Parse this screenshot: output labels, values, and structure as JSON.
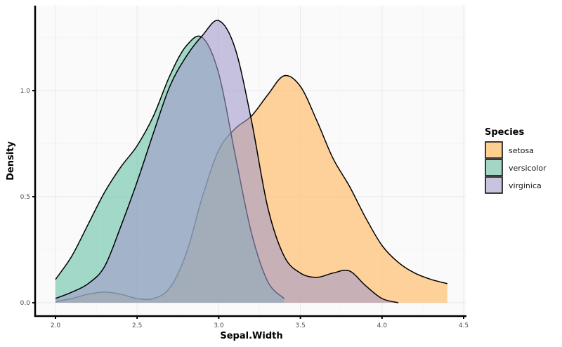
{
  "chart_data": {
    "type": "area",
    "subtype": "density",
    "title": "",
    "xlabel": "Sepal.Width",
    "ylabel": "Density",
    "xlim": [
      1.88,
      4.52
    ],
    "ylim": [
      -0.065,
      1.4
    ],
    "x_ticks": [
      2.0,
      2.5,
      3.0,
      3.5,
      4.0,
      4.5
    ],
    "x_tick_labels": [
      "2.0",
      "2.5",
      "3.0",
      "3.5",
      "4.0",
      "4.5"
    ],
    "y_ticks": [
      0.0,
      0.5,
      1.0
    ],
    "y_tick_labels": [
      "0.0",
      "0.5",
      "1.0"
    ],
    "grid": true,
    "legend_position": "right",
    "legend_title": "Species",
    "series": [
      {
        "name": "setosa",
        "color": "#FDBF6F",
        "opacity": 0.7,
        "x": [
          2.0,
          2.1,
          2.2,
          2.3,
          2.4,
          2.5,
          2.6,
          2.7,
          2.8,
          2.9,
          3.0,
          3.1,
          3.2,
          3.3,
          3.4,
          3.5,
          3.6,
          3.7,
          3.8,
          3.9,
          4.0,
          4.1,
          4.2,
          4.3,
          4.4
        ],
        "values": [
          0.005,
          0.02,
          0.04,
          0.05,
          0.04,
          0.02,
          0.02,
          0.07,
          0.23,
          0.5,
          0.72,
          0.82,
          0.88,
          0.98,
          1.07,
          1.02,
          0.86,
          0.68,
          0.55,
          0.4,
          0.27,
          0.19,
          0.14,
          0.11,
          0.09
        ]
      },
      {
        "name": "versicolor",
        "color": "#66C2A5",
        "opacity": 0.6,
        "x": [
          2.0,
          2.1,
          2.2,
          2.3,
          2.4,
          2.5,
          2.6,
          2.7,
          2.8,
          2.9,
          3.0,
          3.1,
          3.2,
          3.3,
          3.4
        ],
        "values": [
          0.11,
          0.22,
          0.37,
          0.52,
          0.64,
          0.74,
          0.88,
          1.07,
          1.21,
          1.25,
          1.08,
          0.7,
          0.33,
          0.1,
          0.02
        ]
      },
      {
        "name": "virginica",
        "color": "#A39BCB",
        "opacity": 0.6,
        "x": [
          2.0,
          2.1,
          2.2,
          2.3,
          2.4,
          2.5,
          2.6,
          2.7,
          2.8,
          2.9,
          3.0,
          3.1,
          3.2,
          3.3,
          3.4,
          3.5,
          3.6,
          3.7,
          3.8,
          3.9,
          4.0,
          4.1
        ],
        "values": [
          0.02,
          0.05,
          0.09,
          0.17,
          0.36,
          0.57,
          0.8,
          1.02,
          1.16,
          1.26,
          1.33,
          1.2,
          0.86,
          0.45,
          0.22,
          0.14,
          0.12,
          0.14,
          0.15,
          0.08,
          0.02,
          0.0
        ]
      }
    ]
  },
  "legend": {
    "title": "Species",
    "items": [
      {
        "label": "setosa",
        "color": "#FDCF91"
      },
      {
        "label": "versicolor",
        "color": "#A3D6C4"
      },
      {
        "label": "virginica",
        "color": "#C9C3E0"
      }
    ]
  },
  "axes": {
    "x_title": "Sepal.Width",
    "y_title": "Density"
  }
}
